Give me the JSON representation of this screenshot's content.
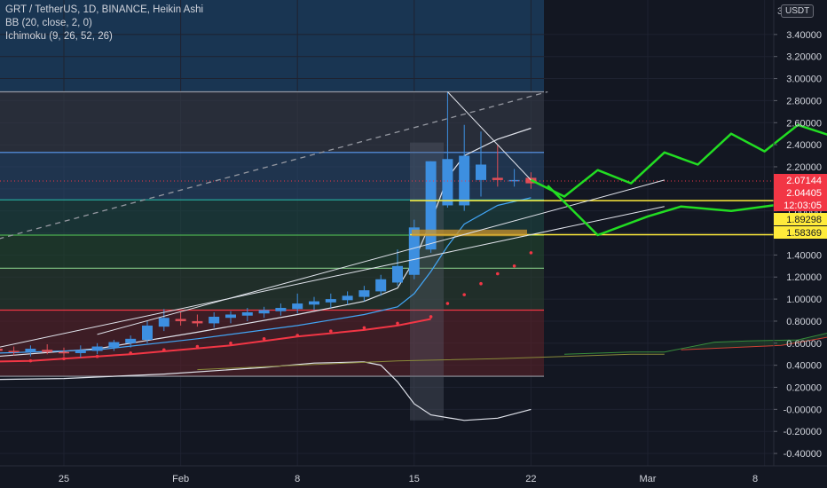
{
  "header": {
    "symbol_line": "GRT / TetherUS, 1D, BINANCE, Heikin Ashi",
    "bb_line": "BB (20, close, 2, 0)",
    "ichimoku_line": "Ichimoku (9, 26, 52, 26)"
  },
  "price_axis": {
    "unit": "USDT",
    "settings_glyph": "3"
  },
  "chart_data": {
    "type": "candlestick",
    "symbol": "GRT / TetherUS",
    "interval": "1D",
    "exchange": "BINANCE",
    "style": "Heikin Ashi",
    "ylim": [
      -0.5,
      3.6
    ],
    "y_ticks": [
      "3.40000",
      "3.20000",
      "3.00000",
      "2.80000",
      "2.60000",
      "2.40000",
      "2.20000",
      "2.00000",
      "1.80000",
      "1.60000",
      "1.40000",
      "1.20000",
      "1.00000",
      "0.80000",
      "0.60000",
      "0.40000",
      "0.20000",
      "-0.00000",
      "-0.20000",
      "-0.40000"
    ],
    "x_ticks": [
      "25",
      "Feb",
      "8",
      "15",
      "22",
      "Mar",
      "8"
    ],
    "price_labels": [
      {
        "text": "2.07144",
        "value": 2.07144,
        "color": "#f23645"
      },
      {
        "text": "2.04405",
        "value": 2.04405,
        "color": "#f23645"
      },
      {
        "text": "12:03:05",
        "value": 1.95,
        "color": "#f23645"
      },
      {
        "text": "1.89298",
        "value": 1.89298,
        "color": "#ffeb3b"
      },
      {
        "text": "1.58369",
        "value": 1.58369,
        "color": "#ffeb3b"
      }
    ],
    "last_price": 2.07144,
    "levels": {
      "range_top": 2.88,
      "blue_line": 2.33,
      "teal_line": 1.9,
      "green_line": 1.58,
      "light_green_line": 1.28,
      "red_line": 0.9,
      "range_bottom": 0.3
    },
    "yellow_lines": [
      1.89298,
      1.58369
    ],
    "candles": [
      {
        "d": -9,
        "o": 0.49,
        "h": 0.56,
        "l": 0.44,
        "c": 0.53
      },
      {
        "d": -8,
        "o": 0.51,
        "h": 0.57,
        "l": 0.47,
        "c": 0.53
      },
      {
        "d": -7,
        "o": 0.52,
        "h": 0.6,
        "l": 0.49,
        "c": 0.57
      },
      {
        "d": -6,
        "o": 0.55,
        "h": 0.6,
        "l": 0.52,
        "c": 0.58
      },
      {
        "d": -5,
        "o": 0.56,
        "h": 0.61,
        "l": 0.52,
        "c": 0.55
      },
      {
        "d": -4,
        "o": 0.55,
        "h": 0.59,
        "l": 0.5,
        "c": 0.53
      },
      {
        "d": -3,
        "o": 0.53,
        "h": 0.57,
        "l": 0.49,
        "c": 0.52
      },
      {
        "d": -2,
        "o": 0.52,
        "h": 0.58,
        "l": 0.48,
        "c": 0.55
      },
      {
        "d": -1,
        "o": 0.54,
        "h": 0.59,
        "l": 0.5,
        "c": 0.52
      },
      {
        "d": 0,
        "o": 0.52,
        "h": 0.56,
        "l": 0.48,
        "c": 0.51
      },
      {
        "d": 1,
        "o": 0.51,
        "h": 0.58,
        "l": 0.47,
        "c": 0.54
      },
      {
        "d": 2,
        "o": 0.53,
        "h": 0.6,
        "l": 0.5,
        "c": 0.57
      },
      {
        "d": 3,
        "o": 0.56,
        "h": 0.63,
        "l": 0.53,
        "c": 0.61
      },
      {
        "d": 4,
        "o": 0.6,
        "h": 0.67,
        "l": 0.56,
        "c": 0.64
      },
      {
        "d": 5,
        "o": 0.63,
        "h": 0.8,
        "l": 0.6,
        "c": 0.76
      },
      {
        "d": 6,
        "o": 0.75,
        "h": 0.91,
        "l": 0.71,
        "c": 0.83
      },
      {
        "d": 7,
        "o": 0.82,
        "h": 0.88,
        "l": 0.76,
        "c": 0.8
      },
      {
        "d": 8,
        "o": 0.8,
        "h": 0.86,
        "l": 0.75,
        "c": 0.78
      },
      {
        "d": 9,
        "o": 0.78,
        "h": 0.88,
        "l": 0.74,
        "c": 0.84
      },
      {
        "d": 10,
        "o": 0.83,
        "h": 0.89,
        "l": 0.78,
        "c": 0.86
      },
      {
        "d": 11,
        "o": 0.85,
        "h": 0.92,
        "l": 0.8,
        "c": 0.88
      },
      {
        "d": 12,
        "o": 0.87,
        "h": 0.93,
        "l": 0.83,
        "c": 0.9
      },
      {
        "d": 13,
        "o": 0.89,
        "h": 0.96,
        "l": 0.85,
        "c": 0.92
      },
      {
        "d": 14,
        "o": 0.91,
        "h": 1.05,
        "l": 0.87,
        "c": 0.96
      },
      {
        "d": 15,
        "o": 0.95,
        "h": 1.02,
        "l": 0.9,
        "c": 0.98
      },
      {
        "d": 16,
        "o": 0.97,
        "h": 1.05,
        "l": 0.92,
        "c": 1.0
      },
      {
        "d": 17,
        "o": 0.99,
        "h": 1.07,
        "l": 0.95,
        "c": 1.03
      },
      {
        "d": 18,
        "o": 1.02,
        "h": 1.12,
        "l": 0.98,
        "c": 1.08
      },
      {
        "d": 19,
        "o": 1.07,
        "h": 1.22,
        "l": 1.03,
        "c": 1.18
      },
      {
        "d": 20,
        "o": 1.15,
        "h": 1.45,
        "l": 1.12,
        "c": 1.3
      },
      {
        "d": 21,
        "o": 1.22,
        "h": 1.72,
        "l": 1.18,
        "c": 1.65
      },
      {
        "d": 22,
        "o": 1.45,
        "h": 2.25,
        "l": 1.42,
        "c": 2.25
      },
      {
        "d": 23,
        "o": 1.85,
        "h": 2.88,
        "l": 1.83,
        "c": 2.27
      },
      {
        "d": 24,
        "o": 1.85,
        "h": 2.58,
        "l": 1.8,
        "c": 2.3
      },
      {
        "d": 25,
        "o": 2.08,
        "h": 2.52,
        "l": 1.93,
        "c": 2.22
      },
      {
        "d": 26,
        "o": 2.1,
        "h": 2.4,
        "l": 2.02,
        "c": 2.08
      },
      {
        "d": 27,
        "o": 2.08,
        "h": 2.18,
        "l": 2.02,
        "c": 2.08
      },
      {
        "d": 28,
        "o": 2.1,
        "h": 2.15,
        "l": 2.0,
        "c": 2.05
      }
    ]
  }
}
